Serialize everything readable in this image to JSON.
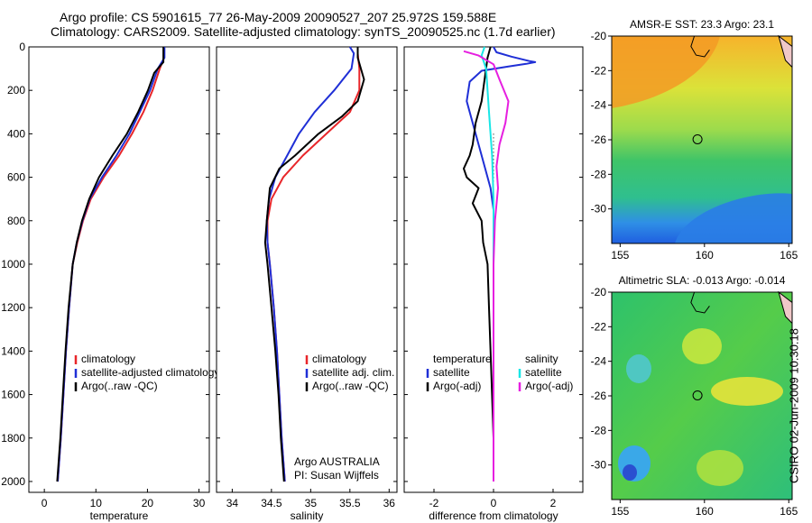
{
  "header": {
    "line1": "Argo profile: CS 5901615_77 26-May-2009 20090527_207 25.972S 159.588E",
    "line2": "Climatology: CARS2009. Satellite-adjusted climatology: synTS_20090525.nc (1.7d earlier)"
  },
  "footer": {
    "credit": "CSIRO 02-Jun-2009 10:30:18"
  },
  "colors": {
    "climatology": "#e8262a",
    "satellite": "#1f2fd6",
    "argo": "#000000",
    "salinity_sat": "#19e6e6",
    "salinity_argo": "#e61fe0"
  },
  "chart_data": [
    {
      "id": "temperature",
      "type": "line",
      "title": "",
      "xlabel": "temperature",
      "ylabel": "",
      "xlim": [
        -3,
        32
      ],
      "ylim": [
        2050,
        0
      ],
      "xticks": [
        0,
        10,
        20,
        30
      ],
      "yticks": [
        0,
        200,
        400,
        600,
        800,
        1000,
        1200,
        1400,
        1600,
        1800,
        2000
      ],
      "legend": [
        "climatology",
        "satellite-adjusted climatology",
        "Argo(..raw -QC)"
      ],
      "series": [
        {
          "name": "climatology",
          "color": "#e8262a",
          "points": [
            [
              23.2,
              0
            ],
            [
              23.2,
              50
            ],
            [
              22.4,
              100
            ],
            [
              21.0,
              200
            ],
            [
              19.2,
              300
            ],
            [
              17.0,
              400
            ],
            [
              14.5,
              500
            ],
            [
              11.5,
              600
            ],
            [
              9.0,
              700
            ],
            [
              7.5,
              800
            ],
            [
              6.4,
              900
            ],
            [
              5.5,
              1000
            ],
            [
              4.8,
              1200
            ],
            [
              4.2,
              1400
            ],
            [
              3.7,
              1600
            ],
            [
              3.2,
              1800
            ],
            [
              2.6,
              2000
            ]
          ]
        },
        {
          "name": "satellite-adjusted climatology",
          "color": "#1f2fd6",
          "points": [
            [
              23.3,
              0
            ],
            [
              23.3,
              50
            ],
            [
              22.0,
              100
            ],
            [
              20.5,
              200
            ],
            [
              18.5,
              300
            ],
            [
              16.5,
              400
            ],
            [
              14.0,
              500
            ],
            [
              11.2,
              600
            ],
            [
              8.8,
              700
            ],
            [
              7.4,
              800
            ],
            [
              6.3,
              900
            ],
            [
              5.5,
              1000
            ],
            [
              4.8,
              1200
            ],
            [
              4.2,
              1400
            ],
            [
              3.7,
              1600
            ],
            [
              3.2,
              1800
            ],
            [
              2.6,
              2000
            ]
          ]
        },
        {
          "name": "Argo(..raw -QC)",
          "color": "#000000",
          "points": [
            [
              23.1,
              0
            ],
            [
              23.1,
              70
            ],
            [
              21.3,
              120
            ],
            [
              20.1,
              200
            ],
            [
              18.2,
              300
            ],
            [
              16.0,
              400
            ],
            [
              13.2,
              500
            ],
            [
              10.6,
              600
            ],
            [
              8.7,
              700
            ],
            [
              7.3,
              800
            ],
            [
              6.3,
              900
            ],
            [
              5.5,
              1000
            ],
            [
              4.7,
              1200
            ],
            [
              4.1,
              1400
            ],
            [
              3.6,
              1600
            ],
            [
              3.1,
              1800
            ],
            [
              2.5,
              2000
            ]
          ]
        }
      ]
    },
    {
      "id": "salinity",
      "type": "line",
      "title": "",
      "xlabel": "salinity",
      "ylabel": "",
      "xlim": [
        33.8,
        36.1
      ],
      "ylim": [
        2050,
        0
      ],
      "xticks": [
        34,
        34.5,
        35,
        35.5,
        36
      ],
      "yticks": [
        0,
        200,
        400,
        600,
        800,
        1000,
        1200,
        1400,
        1600,
        1800,
        2000
      ],
      "legend": [
        "climatology",
        "satellite adj. clim.",
        "Argo(..raw -QC)"
      ],
      "annotation": [
        "Argo AUSTRALIA",
        "PI: Susan Wijffels"
      ],
      "series": [
        {
          "name": "climatology",
          "color": "#e8262a",
          "points": [
            [
              35.6,
              0
            ],
            [
              35.6,
              30
            ],
            [
              35.62,
              100
            ],
            [
              35.62,
              200
            ],
            [
              35.5,
              300
            ],
            [
              35.2,
              400
            ],
            [
              34.9,
              500
            ],
            [
              34.65,
              600
            ],
            [
              34.5,
              700
            ],
            [
              34.45,
              800
            ],
            [
              34.45,
              900
            ],
            [
              34.48,
              1000
            ],
            [
              34.53,
              1200
            ],
            [
              34.57,
              1400
            ],
            [
              34.6,
              1600
            ],
            [
              34.63,
              1800
            ],
            [
              34.67,
              2000
            ]
          ]
        },
        {
          "name": "satellite adj. clim.",
          "color": "#1f2fd6",
          "points": [
            [
              35.5,
              0
            ],
            [
              35.55,
              30
            ],
            [
              35.52,
              100
            ],
            [
              35.3,
              200
            ],
            [
              35.05,
              300
            ],
            [
              34.85,
              400
            ],
            [
              34.7,
              500
            ],
            [
              34.55,
              600
            ],
            [
              34.47,
              700
            ],
            [
              34.44,
              800
            ],
            [
              34.45,
              900
            ],
            [
              34.48,
              1000
            ],
            [
              34.53,
              1200
            ],
            [
              34.57,
              1400
            ],
            [
              34.6,
              1600
            ],
            [
              34.63,
              1800
            ],
            [
              34.67,
              2000
            ]
          ]
        },
        {
          "name": "Argo(..raw -QC)",
          "color": "#000000",
          "points": [
            [
              35.6,
              0
            ],
            [
              35.6,
              50
            ],
            [
              35.68,
              150
            ],
            [
              35.6,
              250
            ],
            [
              35.4,
              320
            ],
            [
              35.1,
              400
            ],
            [
              34.8,
              500
            ],
            [
              34.6,
              560
            ],
            [
              34.48,
              650
            ],
            [
              34.44,
              800
            ],
            [
              34.42,
              900
            ],
            [
              34.45,
              1000
            ],
            [
              34.5,
              1200
            ],
            [
              34.55,
              1400
            ],
            [
              34.59,
              1600
            ],
            [
              34.62,
              1800
            ],
            [
              34.66,
              2000
            ]
          ]
        }
      ]
    },
    {
      "id": "difference",
      "type": "line",
      "title": "",
      "xlabel": "difference from climatology",
      "ylabel": "",
      "xlim": [
        -3,
        3
      ],
      "ylim": [
        2050,
        0
      ],
      "xticks": [
        -2,
        0,
        2
      ],
      "yticks": [
        0,
        200,
        400,
        600,
        800,
        1000,
        1200,
        1400,
        1600,
        1800,
        2000
      ],
      "legend_left_title": "temperature",
      "legend_right_title": "salinity",
      "legend": [
        "satellite",
        "Argo(-adj)",
        "satellite",
        "Argo(-adj)"
      ],
      "series": [
        {
          "name": "temperature satellite",
          "color": "#1f2fd6",
          "points": [
            [
              0,
              0
            ],
            [
              0.1,
              25
            ],
            [
              0.6,
              45
            ],
            [
              1.2,
              65
            ],
            [
              1.4,
              70
            ],
            [
              1.1,
              78
            ],
            [
              0.5,
              90
            ],
            [
              -0.4,
              110
            ],
            [
              -0.8,
              160
            ],
            [
              -0.9,
              250
            ],
            [
              -0.7,
              350
            ],
            [
              -0.5,
              450
            ],
            [
              -0.3,
              550
            ],
            [
              -0.1,
              650
            ],
            [
              0,
              750
            ],
            [
              0,
              900
            ],
            [
              0,
              2000
            ]
          ]
        },
        {
          "name": "temperature Argo(-adj)",
          "color": "#000000",
          "points": [
            [
              -0.1,
              0
            ],
            [
              -0.2,
              50
            ],
            [
              -0.3,
              150
            ],
            [
              -0.4,
              250
            ],
            [
              -0.6,
              350
            ],
            [
              -0.7,
              450
            ],
            [
              -0.8,
              500
            ],
            [
              -1.0,
              560
            ],
            [
              -0.9,
              600
            ],
            [
              -0.5,
              650
            ],
            [
              -0.7,
              720
            ],
            [
              -0.4,
              800
            ],
            [
              -0.35,
              900
            ],
            [
              -0.2,
              1000
            ],
            [
              -0.15,
              1200
            ],
            [
              -0.1,
              1400
            ],
            [
              -0.05,
              1600
            ],
            [
              0,
              1800
            ],
            [
              0,
              2000
            ]
          ]
        },
        {
          "name": "salinity satellite",
          "color": "#19e6e6",
          "points": [
            [
              -0.3,
              0
            ],
            [
              -0.4,
              40
            ],
            [
              -0.25,
              100
            ],
            [
              -0.2,
              200
            ],
            [
              -0.15,
              300
            ],
            [
              -0.1,
              400
            ],
            [
              -0.05,
              500
            ],
            [
              0,
              700
            ],
            [
              0,
              2000
            ]
          ]
        },
        {
          "name": "salinity Argo(-adj)",
          "color": "#e61fe0",
          "points": [
            [
              -1.0,
              20
            ],
            [
              -0.5,
              40
            ],
            [
              0,
              80
            ],
            [
              0.2,
              150
            ],
            [
              0.5,
              250
            ],
            [
              0.4,
              350
            ],
            [
              0.2,
              450
            ],
            [
              0.1,
              550
            ],
            [
              0.15,
              650
            ],
            [
              0.05,
              800
            ],
            [
              0,
              1000
            ],
            [
              0,
              2000
            ]
          ]
        }
      ]
    },
    {
      "id": "sst-map",
      "type": "heatmap",
      "title": "AMSR-E SST: 23.3 Argo: 23.1",
      "xlim": [
        154.5,
        165.2
      ],
      "ylim": [
        -32,
        -20
      ],
      "xticks": [
        155,
        160,
        165
      ],
      "yticks": [
        -20,
        -22,
        -24,
        -26,
        -28,
        -30
      ],
      "argo_position": [
        159.588,
        -25.972
      ]
    },
    {
      "id": "sla-map",
      "type": "heatmap",
      "title": "Altimetric SLA: -0.013 Argo: -0.014",
      "xlim": [
        154.5,
        165.2
      ],
      "ylim": [
        -32,
        -20
      ],
      "xticks": [
        155,
        160,
        165
      ],
      "yticks": [
        -20,
        -22,
        -24,
        -26,
        -28,
        -30
      ],
      "argo_position": [
        159.588,
        -25.972
      ]
    }
  ]
}
